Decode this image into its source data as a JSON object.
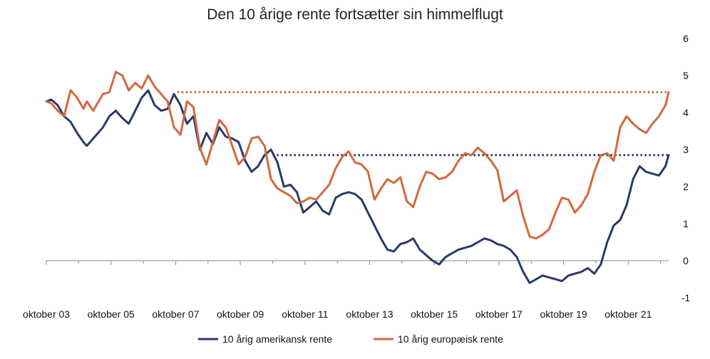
{
  "chart_data": {
    "type": "line",
    "title": "Den 10 årige rente fortsætter sin himmelflugt",
    "xlabel": "",
    "ylabel": "",
    "x_ticks": [
      "oktober 03",
      "oktober 05",
      "oktober 07",
      "oktober 09",
      "oktober 11",
      "oktober 13",
      "oktober 15",
      "oktober 17",
      "oktober 19",
      "oktober 21"
    ],
    "x_range": [
      2003.75,
      2023.0
    ],
    "ylim": [
      -1,
      6
    ],
    "y_ticks": [
      6,
      5,
      4,
      3,
      2,
      1,
      0,
      -1
    ],
    "grid": false,
    "legend_position": "bottom",
    "series": [
      {
        "name": "10 årig amerikansk rente",
        "color": "#2a3a6b",
        "x": [
          2003.75,
          2003.9,
          2004.1,
          2004.3,
          2004.5,
          2004.7,
          2004.9,
          2005.0,
          2005.2,
          2005.5,
          2005.7,
          2005.9,
          2006.1,
          2006.3,
          2006.5,
          2006.7,
          2006.9,
          2007.1,
          2007.3,
          2007.5,
          2007.7,
          2007.9,
          2008.1,
          2008.3,
          2008.5,
          2008.7,
          2008.9,
          2009.1,
          2009.3,
          2009.5,
          2009.7,
          2009.9,
          2010.1,
          2010.3,
          2010.5,
          2010.7,
          2010.9,
          2011.1,
          2011.3,
          2011.5,
          2011.7,
          2011.9,
          2012.1,
          2012.3,
          2012.5,
          2012.7,
          2012.9,
          2013.1,
          2013.3,
          2013.5,
          2013.7,
          2013.9,
          2014.1,
          2014.3,
          2014.5,
          2014.7,
          2014.9,
          2015.1,
          2015.3,
          2015.5,
          2015.7,
          2015.9,
          2016.1,
          2016.3,
          2016.5,
          2016.7,
          2016.9,
          2017.1,
          2017.3,
          2017.5,
          2017.7,
          2017.9,
          2018.1,
          2018.3,
          2018.5,
          2018.7,
          2018.9,
          2019.1,
          2019.3,
          2019.5,
          2019.7,
          2019.9,
          2020.1,
          2020.3,
          2020.5,
          2020.7,
          2020.9,
          2021.1,
          2021.3,
          2021.5,
          2021.7,
          2021.9,
          2022.1,
          2022.3,
          2022.5,
          2022.7,
          2022.9,
          2023.0
        ],
        "values": [
          4.3,
          4.35,
          4.2,
          3.9,
          3.75,
          3.45,
          3.2,
          3.1,
          3.3,
          3.6,
          3.9,
          4.05,
          3.85,
          3.7,
          4.05,
          4.4,
          4.6,
          4.2,
          4.05,
          4.1,
          4.5,
          4.2,
          3.7,
          3.9,
          3.0,
          3.45,
          3.15,
          3.6,
          3.35,
          3.3,
          3.2,
          2.7,
          2.4,
          2.55,
          2.85,
          3.0,
          2.65,
          2.0,
          2.05,
          1.85,
          1.3,
          1.45,
          1.6,
          1.35,
          1.25,
          1.7,
          1.8,
          1.85,
          1.8,
          1.65,
          1.3,
          0.95,
          0.6,
          0.3,
          0.25,
          0.45,
          0.5,
          0.6,
          0.3,
          0.15,
          0.0,
          -0.1,
          0.1,
          0.2,
          0.3,
          0.35,
          0.4,
          0.5,
          0.6,
          0.55,
          0.45,
          0.4,
          0.3,
          0.1,
          -0.3,
          -0.6,
          -0.5,
          -0.4,
          -0.45,
          -0.5,
          -0.55,
          -0.4,
          -0.35,
          -0.3,
          -0.2,
          -0.35,
          -0.1,
          0.5,
          0.95,
          1.1,
          1.5,
          2.2,
          2.55,
          2.4,
          2.35,
          2.3,
          2.55,
          2.85
        ]
      },
      {
        "name": "10 årig europæisk rente",
        "color": "#d2693f",
        "x": [
          2003.75,
          2003.9,
          2004.1,
          2004.3,
          2004.5,
          2004.7,
          2004.9,
          2005.0,
          2005.2,
          2005.5,
          2005.7,
          2005.9,
          2006.1,
          2006.3,
          2006.5,
          2006.7,
          2006.9,
          2007.1,
          2007.3,
          2007.5,
          2007.7,
          2007.9,
          2008.1,
          2008.3,
          2008.5,
          2008.7,
          2008.9,
          2009.1,
          2009.3,
          2009.5,
          2009.7,
          2009.9,
          2010.1,
          2010.3,
          2010.5,
          2010.7,
          2010.9,
          2011.1,
          2011.3,
          2011.5,
          2011.7,
          2011.9,
          2012.1,
          2012.3,
          2012.5,
          2012.7,
          2012.9,
          2013.1,
          2013.3,
          2013.5,
          2013.7,
          2013.9,
          2014.1,
          2014.3,
          2014.5,
          2014.7,
          2014.9,
          2015.1,
          2015.3,
          2015.5,
          2015.7,
          2015.9,
          2016.1,
          2016.3,
          2016.5,
          2016.7,
          2016.9,
          2017.1,
          2017.3,
          2017.5,
          2017.7,
          2017.9,
          2018.1,
          2018.3,
          2018.5,
          2018.7,
          2018.9,
          2019.1,
          2019.3,
          2019.5,
          2019.7,
          2019.9,
          2020.1,
          2020.3,
          2020.5,
          2020.7,
          2020.9,
          2021.1,
          2021.3,
          2021.5,
          2021.7,
          2021.9,
          2022.1,
          2022.3,
          2022.5,
          2022.7,
          2022.9,
          2023.0
        ],
        "values": [
          4.3,
          4.25,
          4.05,
          3.9,
          4.6,
          4.4,
          4.1,
          4.3,
          4.05,
          4.5,
          4.55,
          5.1,
          5.0,
          4.6,
          4.8,
          4.65,
          5.0,
          4.7,
          4.5,
          4.3,
          3.6,
          3.4,
          4.3,
          4.15,
          3.05,
          2.6,
          3.2,
          3.8,
          3.6,
          3.1,
          2.6,
          2.8,
          3.3,
          3.35,
          3.1,
          2.2,
          1.95,
          1.85,
          1.75,
          1.55,
          1.6,
          1.7,
          1.65,
          1.85,
          2.05,
          2.5,
          2.8,
          2.95,
          2.65,
          2.6,
          2.4,
          1.65,
          1.95,
          2.2,
          2.1,
          2.25,
          1.6,
          1.45,
          2.0,
          2.4,
          2.35,
          2.2,
          2.25,
          2.4,
          2.7,
          2.9,
          2.85,
          3.05,
          2.9,
          2.7,
          2.45,
          1.6,
          1.75,
          1.9,
          1.2,
          0.65,
          0.6,
          0.7,
          0.85,
          1.3,
          1.7,
          1.65,
          1.3,
          1.5,
          1.8,
          2.4,
          2.85,
          2.9,
          2.7,
          3.6,
          3.9,
          3.7,
          3.55,
          3.45,
          3.7,
          3.9,
          4.2,
          4.55
        ]
      }
    ],
    "reference_lines": [
      {
        "series": "10 årig amerikansk rente",
        "value": 2.85,
        "from_x": 2010.75,
        "to_x": 2023.0,
        "style": "dotted",
        "color": "#2a3a6b"
      },
      {
        "series": "10 årig europæisk rente",
        "value": 4.55,
        "from_x": 2007.8,
        "to_x": 2023.0,
        "style": "dotted",
        "color": "#d2693f"
      }
    ]
  }
}
